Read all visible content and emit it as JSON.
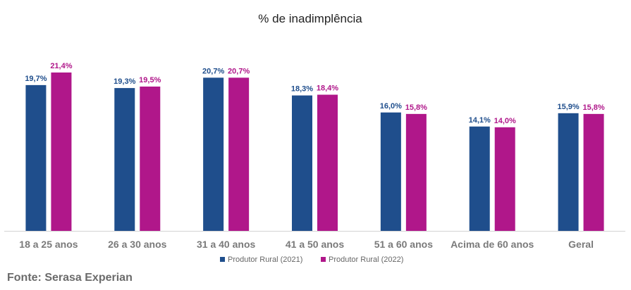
{
  "chart_data": {
    "type": "bar",
    "title": "% de inadimplência",
    "xlabel": "",
    "ylabel": "",
    "ylim": [
      0,
      21.4
    ],
    "grid": false,
    "legend_position": "bottom-center",
    "categories": [
      "18 a 25 anos",
      "26 a 30 anos",
      "31 a 40 anos",
      "41 a 50 anos",
      "51 a 60 anos",
      "Acima de 60 anos",
      "Geral"
    ],
    "series": [
      {
        "name": "Produtor Rural (2021)",
        "color": "#1f4e8c",
        "values": [
          19.7,
          19.3,
          20.7,
          18.3,
          16.0,
          14.1,
          15.9
        ],
        "labels": [
          "19,7%",
          "19,3%",
          "20,7%",
          "18,3%",
          "16,0%",
          "14,1%",
          "15,9%"
        ]
      },
      {
        "name": "Produtor Rural (2022)",
        "color": "#b0178a",
        "values": [
          21.4,
          19.5,
          20.7,
          18.4,
          15.8,
          14.0,
          15.8
        ],
        "labels": [
          "21,4%",
          "19,5%",
          "20,7%",
          "18,4%",
          "15,8%",
          "14,0%",
          "15,8%"
        ]
      }
    ]
  },
  "footer": {
    "source": "Fonte: Serasa Experian"
  }
}
